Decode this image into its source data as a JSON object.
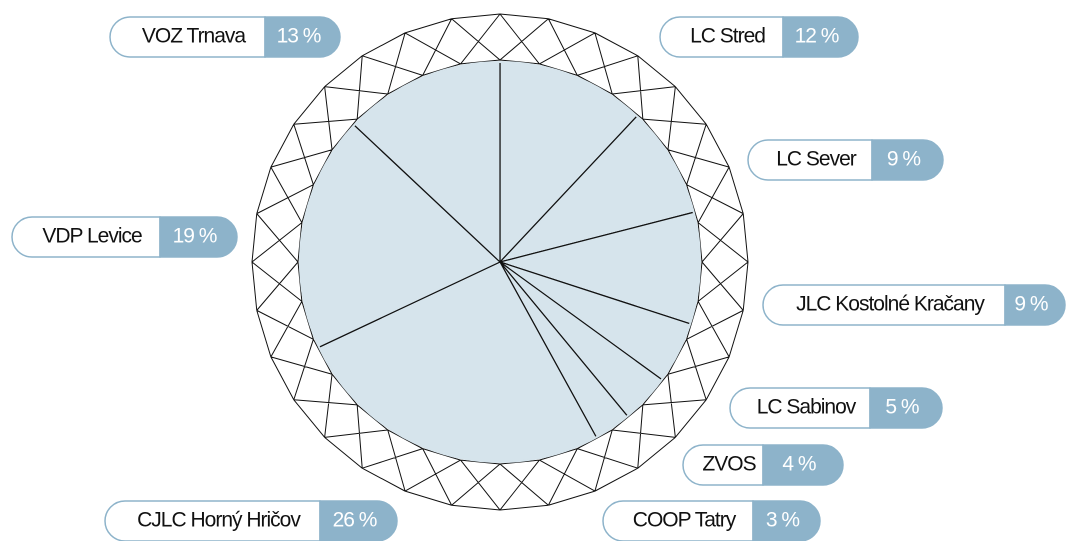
{
  "chart_data": {
    "type": "pie",
    "categories": [
      "LC Stred",
      "LC Sever",
      "JLC Kostolné Kračany",
      "LC Sabinov",
      "ZVOS",
      "COOP Tatry",
      "CJLC Horný Hričov",
      "VDP Levice",
      "VOZ Trnava"
    ],
    "values": [
      12,
      9,
      9,
      5,
      4,
      3,
      26,
      19,
      13
    ],
    "value_labels": [
      "12 %",
      "9 %",
      "9 %",
      "5 %",
      "4 %",
      "3 %",
      "26 %",
      "19 %",
      "13 %"
    ],
    "color": "#d6e4ec"
  }
}
